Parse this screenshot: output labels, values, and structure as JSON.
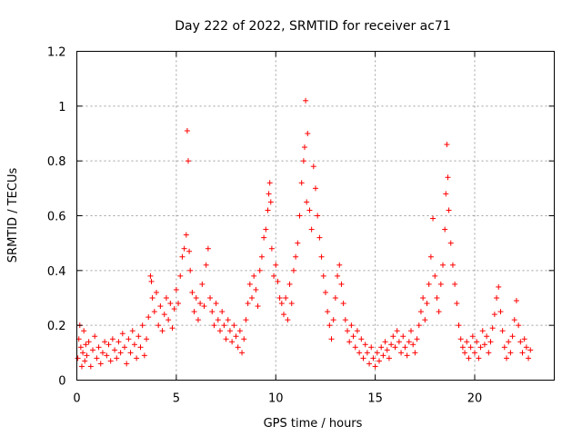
{
  "chart_data": {
    "type": "scatter",
    "title": "Day 222 of 2022, SRMTID for receiver ac71",
    "xlabel": "GPS time / hours",
    "ylabel": "SRMTID / TECUs",
    "xlim": [
      0,
      24
    ],
    "ylim": [
      0,
      1.2
    ],
    "xticks": [
      0,
      5,
      10,
      15,
      20
    ],
    "xtick_labels": [
      "0",
      "5",
      "10",
      "15",
      "20"
    ],
    "yticks": [
      0,
      0.2,
      0.4,
      0.6,
      0.8,
      1.0,
      1.2
    ],
    "ytick_labels": [
      "0",
      "0.2",
      "0.4",
      "0.6",
      "0.8",
      "1",
      "1.2"
    ],
    "grid": true,
    "marker": "+",
    "color": "#ff0000",
    "series": [
      {
        "name": "SRMTID",
        "points": [
          [
            0.05,
            0.08
          ],
          [
            0.1,
            0.15
          ],
          [
            0.15,
            0.2
          ],
          [
            0.2,
            0.12
          ],
          [
            0.25,
            0.05
          ],
          [
            0.3,
            0.1
          ],
          [
            0.35,
            0.18
          ],
          [
            0.4,
            0.07
          ],
          [
            0.45,
            0.13
          ],
          [
            0.5,
            0.09
          ],
          [
            0.6,
            0.14
          ],
          [
            0.7,
            0.05
          ],
          [
            0.8,
            0.11
          ],
          [
            0.9,
            0.16
          ],
          [
            1.0,
            0.08
          ],
          [
            1.1,
            0.12
          ],
          [
            1.2,
            0.06
          ],
          [
            1.3,
            0.1
          ],
          [
            1.4,
            0.14
          ],
          [
            1.5,
            0.09
          ],
          [
            1.6,
            0.13
          ],
          [
            1.7,
            0.07
          ],
          [
            1.8,
            0.15
          ],
          [
            1.9,
            0.11
          ],
          [
            2.0,
            0.08
          ],
          [
            2.1,
            0.14
          ],
          [
            2.2,
            0.1
          ],
          [
            2.3,
            0.17
          ],
          [
            2.4,
            0.12
          ],
          [
            2.5,
            0.06
          ],
          [
            2.6,
            0.15
          ],
          [
            2.7,
            0.1
          ],
          [
            2.8,
            0.18
          ],
          [
            2.9,
            0.13
          ],
          [
            3.0,
            0.08
          ],
          [
            3.1,
            0.16
          ],
          [
            3.2,
            0.12
          ],
          [
            3.3,
            0.2
          ],
          [
            3.4,
            0.09
          ],
          [
            3.5,
            0.15
          ],
          [
            3.6,
            0.23
          ],
          [
            3.7,
            0.38
          ],
          [
            3.75,
            0.36
          ],
          [
            3.8,
            0.3
          ],
          [
            3.9,
            0.25
          ],
          [
            4.0,
            0.32
          ],
          [
            4.1,
            0.2
          ],
          [
            4.2,
            0.27
          ],
          [
            4.3,
            0.18
          ],
          [
            4.4,
            0.24
          ],
          [
            4.5,
            0.3
          ],
          [
            4.6,
            0.22
          ],
          [
            4.7,
            0.28
          ],
          [
            4.8,
            0.19
          ],
          [
            4.9,
            0.26
          ],
          [
            5.0,
            0.33
          ],
          [
            5.1,
            0.28
          ],
          [
            5.2,
            0.38
          ],
          [
            5.3,
            0.45
          ],
          [
            5.4,
            0.48
          ],
          [
            5.5,
            0.53
          ],
          [
            5.55,
            0.91
          ],
          [
            5.6,
            0.8
          ],
          [
            5.65,
            0.47
          ],
          [
            5.7,
            0.4
          ],
          [
            5.8,
            0.32
          ],
          [
            5.9,
            0.25
          ],
          [
            6.0,
            0.3
          ],
          [
            6.1,
            0.22
          ],
          [
            6.2,
            0.28
          ],
          [
            6.3,
            0.35
          ],
          [
            6.4,
            0.27
          ],
          [
            6.5,
            0.42
          ],
          [
            6.6,
            0.48
          ],
          [
            6.7,
            0.3
          ],
          [
            6.8,
            0.25
          ],
          [
            6.9,
            0.2
          ],
          [
            7.0,
            0.28
          ],
          [
            7.1,
            0.22
          ],
          [
            7.2,
            0.18
          ],
          [
            7.3,
            0.25
          ],
          [
            7.4,
            0.2
          ],
          [
            7.5,
            0.15
          ],
          [
            7.6,
            0.22
          ],
          [
            7.7,
            0.18
          ],
          [
            7.8,
            0.14
          ],
          [
            7.9,
            0.2
          ],
          [
            8.0,
            0.16
          ],
          [
            8.1,
            0.12
          ],
          [
            8.2,
            0.18
          ],
          [
            8.3,
            0.1
          ],
          [
            8.4,
            0.15
          ],
          [
            8.5,
            0.22
          ],
          [
            8.6,
            0.28
          ],
          [
            8.7,
            0.35
          ],
          [
            8.8,
            0.3
          ],
          [
            8.9,
            0.38
          ],
          [
            9.0,
            0.33
          ],
          [
            9.1,
            0.27
          ],
          [
            9.2,
            0.4
          ],
          [
            9.3,
            0.45
          ],
          [
            9.4,
            0.52
          ],
          [
            9.5,
            0.55
          ],
          [
            9.6,
            0.62
          ],
          [
            9.65,
            0.68
          ],
          [
            9.7,
            0.72
          ],
          [
            9.75,
            0.65
          ],
          [
            9.8,
            0.48
          ],
          [
            9.9,
            0.38
          ],
          [
            10.0,
            0.42
          ],
          [
            10.1,
            0.36
          ],
          [
            10.2,
            0.3
          ],
          [
            10.3,
            0.28
          ],
          [
            10.4,
            0.24
          ],
          [
            10.5,
            0.3
          ],
          [
            10.6,
            0.22
          ],
          [
            10.7,
            0.35
          ],
          [
            10.8,
            0.28
          ],
          [
            10.9,
            0.4
          ],
          [
            11.0,
            0.45
          ],
          [
            11.1,
            0.5
          ],
          [
            11.2,
            0.6
          ],
          [
            11.3,
            0.72
          ],
          [
            11.4,
            0.8
          ],
          [
            11.45,
            0.85
          ],
          [
            11.5,
            1.02
          ],
          [
            11.55,
            0.65
          ],
          [
            11.6,
            0.9
          ],
          [
            11.7,
            0.62
          ],
          [
            11.8,
            0.55
          ],
          [
            11.9,
            0.78
          ],
          [
            12.0,
            0.7
          ],
          [
            12.1,
            0.6
          ],
          [
            12.2,
            0.52
          ],
          [
            12.3,
            0.45
          ],
          [
            12.4,
            0.38
          ],
          [
            12.5,
            0.32
          ],
          [
            12.6,
            0.25
          ],
          [
            12.7,
            0.2
          ],
          [
            12.8,
            0.15
          ],
          [
            12.9,
            0.22
          ],
          [
            13.0,
            0.3
          ],
          [
            13.1,
            0.38
          ],
          [
            13.2,
            0.42
          ],
          [
            13.3,
            0.35
          ],
          [
            13.4,
            0.28
          ],
          [
            13.5,
            0.22
          ],
          [
            13.6,
            0.18
          ],
          [
            13.7,
            0.14
          ],
          [
            13.8,
            0.2
          ],
          [
            13.9,
            0.16
          ],
          [
            14.0,
            0.12
          ],
          [
            14.1,
            0.18
          ],
          [
            14.2,
            0.1
          ],
          [
            14.3,
            0.15
          ],
          [
            14.4,
            0.08
          ],
          [
            14.5,
            0.13
          ],
          [
            14.6,
            0.1
          ],
          [
            14.7,
            0.06
          ],
          [
            14.8,
            0.12
          ],
          [
            14.9,
            0.08
          ],
          [
            15.0,
            0.05
          ],
          [
            15.1,
            0.1
          ],
          [
            15.2,
            0.07
          ],
          [
            15.3,
            0.12
          ],
          [
            15.4,
            0.09
          ],
          [
            15.5,
            0.14
          ],
          [
            15.6,
            0.11
          ],
          [
            15.7,
            0.08
          ],
          [
            15.8,
            0.13
          ],
          [
            15.9,
            0.16
          ],
          [
            16.0,
            0.12
          ],
          [
            16.1,
            0.18
          ],
          [
            16.2,
            0.14
          ],
          [
            16.3,
            0.1
          ],
          [
            16.4,
            0.16
          ],
          [
            16.5,
            0.12
          ],
          [
            16.6,
            0.09
          ],
          [
            16.7,
            0.14
          ],
          [
            16.8,
            0.18
          ],
          [
            16.9,
            0.13
          ],
          [
            17.0,
            0.1
          ],
          [
            17.1,
            0.15
          ],
          [
            17.2,
            0.2
          ],
          [
            17.3,
            0.25
          ],
          [
            17.4,
            0.3
          ],
          [
            17.5,
            0.22
          ],
          [
            17.6,
            0.28
          ],
          [
            17.7,
            0.35
          ],
          [
            17.8,
            0.45
          ],
          [
            17.9,
            0.59
          ],
          [
            18.0,
            0.38
          ],
          [
            18.1,
            0.3
          ],
          [
            18.2,
            0.25
          ],
          [
            18.3,
            0.35
          ],
          [
            18.4,
            0.42
          ],
          [
            18.5,
            0.55
          ],
          [
            18.55,
            0.68
          ],
          [
            18.6,
            0.86
          ],
          [
            18.65,
            0.74
          ],
          [
            18.7,
            0.62
          ],
          [
            18.8,
            0.5
          ],
          [
            18.9,
            0.42
          ],
          [
            19.0,
            0.35
          ],
          [
            19.1,
            0.28
          ],
          [
            19.2,
            0.2
          ],
          [
            19.3,
            0.15
          ],
          [
            19.4,
            0.12
          ],
          [
            19.5,
            0.1
          ],
          [
            19.6,
            0.14
          ],
          [
            19.7,
            0.08
          ],
          [
            19.8,
            0.12
          ],
          [
            19.9,
            0.16
          ],
          [
            20.0,
            0.1
          ],
          [
            20.1,
            0.14
          ],
          [
            20.2,
            0.08
          ],
          [
            20.3,
            0.12
          ],
          [
            20.4,
            0.18
          ],
          [
            20.5,
            0.13
          ],
          [
            20.6,
            0.16
          ],
          [
            20.7,
            0.1
          ],
          [
            20.8,
            0.14
          ],
          [
            20.9,
            0.19
          ],
          [
            21.0,
            0.24
          ],
          [
            21.1,
            0.3
          ],
          [
            21.2,
            0.34
          ],
          [
            21.3,
            0.25
          ],
          [
            21.4,
            0.18
          ],
          [
            21.5,
            0.12
          ],
          [
            21.6,
            0.08
          ],
          [
            21.7,
            0.14
          ],
          [
            21.8,
            0.1
          ],
          [
            21.9,
            0.16
          ],
          [
            22.0,
            0.22
          ],
          [
            22.1,
            0.29
          ],
          [
            22.2,
            0.2
          ],
          [
            22.3,
            0.14
          ],
          [
            22.4,
            0.1
          ],
          [
            22.5,
            0.15
          ],
          [
            22.6,
            0.12
          ],
          [
            22.7,
            0.08
          ],
          [
            22.8,
            0.11
          ]
        ]
      }
    ]
  }
}
